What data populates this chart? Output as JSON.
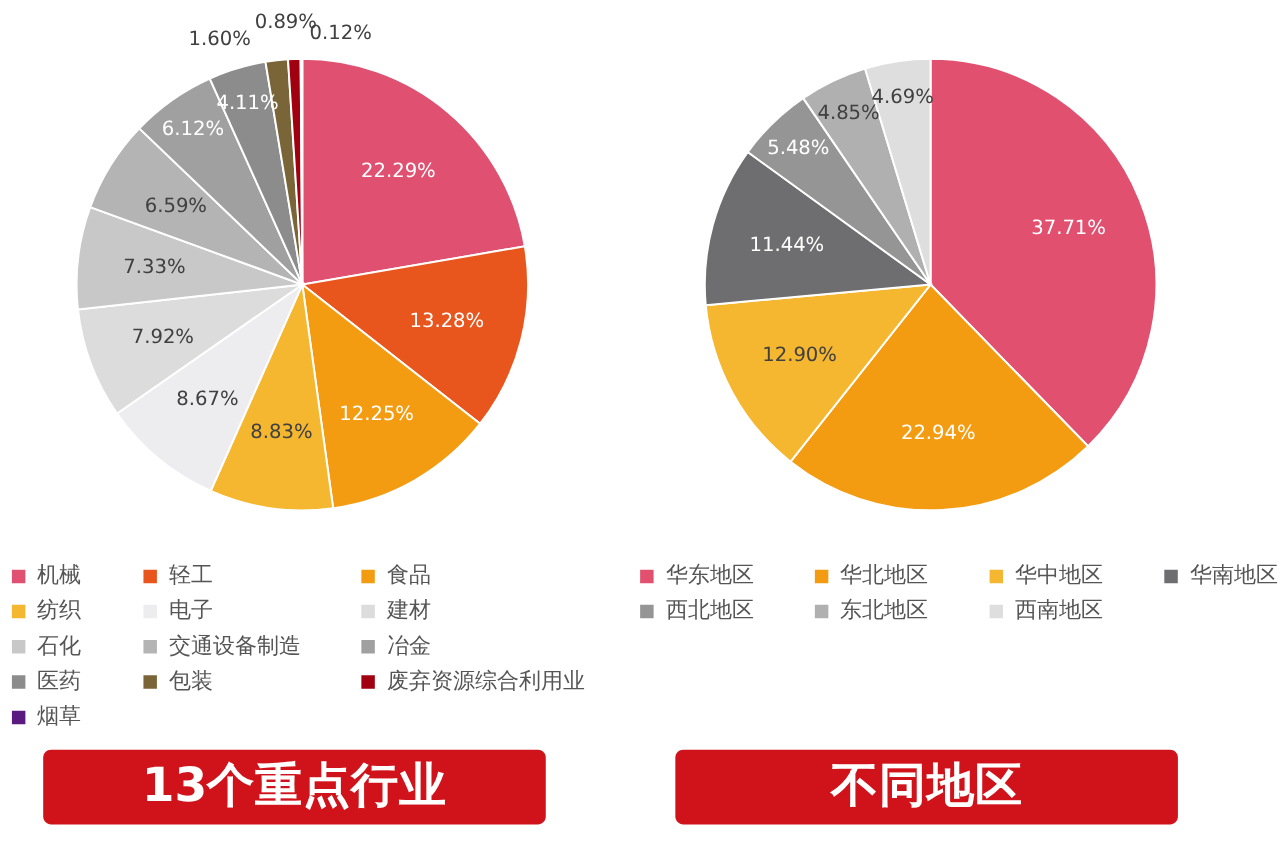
{
  "chart_data": [
    {
      "type": "pie",
      "title": "13个重点行业",
      "legend": "bottom",
      "categories": [
        "机械",
        "轻工",
        "食品",
        "纺织",
        "电子",
        "建材",
        "石化",
        "交通设备制造",
        "冶金",
        "医药",
        "包装",
        "废弃资源综合利用业",
        "烟草"
      ],
      "values": [
        22.29,
        13.28,
        12.25,
        8.83,
        8.67,
        7.92,
        7.33,
        6.59,
        6.12,
        4.11,
        1.6,
        0.89,
        0.12
      ],
      "value_labels": [
        "22.29%",
        "13.28%",
        "12.25%",
        "8.83%",
        "8.67%",
        "7.92%",
        "7.33%",
        "6.59%",
        "6.12%",
        "4.11%",
        "1.60%",
        "0.89%",
        "0.12%"
      ],
      "colors": [
        "#e05070",
        "#e8561e",
        "#f39c12",
        "#f5b730",
        "#ededf0",
        "#dcdcdc",
        "#c8c8c8",
        "#b4b4b4",
        "#a0a0a0",
        "#8c8c8c",
        "#7a6538",
        "#a00010",
        "#5a1a80"
      ]
    },
    {
      "type": "pie",
      "title": "不同地区",
      "legend": "bottom",
      "categories": [
        "华东地区",
        "华北地区",
        "华中地区",
        "华南地区",
        "西北地区",
        "东北地区",
        "西南地区"
      ],
      "values": [
        37.71,
        22.94,
        12.9,
        11.44,
        5.48,
        4.85,
        4.69
      ],
      "value_labels": [
        "37.71%",
        "22.94%",
        "12.90%",
        "11.44%",
        "5.48%",
        "4.85%",
        "4.69%"
      ],
      "colors": [
        "#e25070",
        "#f39c12",
        "#f5b730",
        "#6e6e70",
        "#959595",
        "#b0b0b0",
        "#dedede"
      ]
    }
  ]
}
